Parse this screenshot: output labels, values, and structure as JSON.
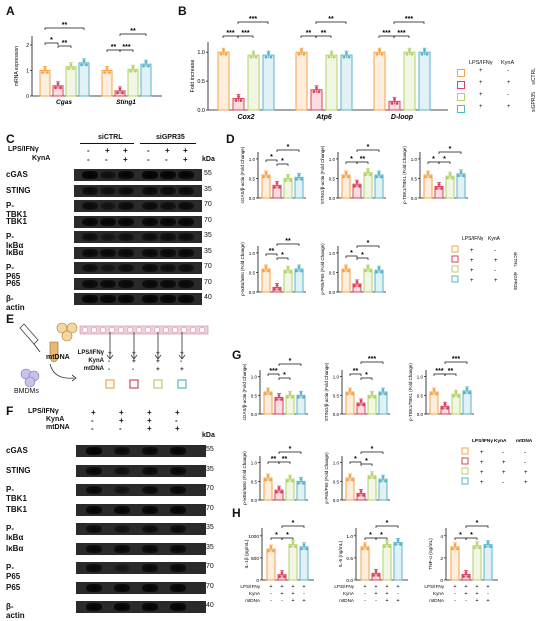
{
  "colors": {
    "orange": "#f5a34a",
    "red": "#d9425a",
    "green": "#b4d26a",
    "blue": "#5ab4c8"
  },
  "panels": {
    "A": {
      "letter": "A",
      "ylabel": "mRNA expression",
      "groups": [
        "Cgas",
        "Sting1"
      ],
      "values": [
        [
          1.0,
          0.4,
          1.15,
          1.3
        ],
        [
          1.0,
          0.2,
          1.05,
          1.25
        ]
      ],
      "yticks": [
        "0",
        "1",
        "2"
      ],
      "sig": [
        "*",
        "**",
        "**",
        "**",
        "***",
        "**"
      ]
    },
    "B": {
      "letter": "B",
      "ylabel": "Fold increase",
      "groups": [
        "Cox2",
        "Atp6",
        "D-loop"
      ],
      "values": [
        [
          1.0,
          0.2,
          0.95,
          0.95
        ],
        [
          1.0,
          0.35,
          0.95,
          0.95
        ],
        [
          1.0,
          0.15,
          1.0,
          1.0
        ]
      ],
      "yticks": [
        "0.0",
        "0.5",
        "1.0"
      ],
      "sig": [
        "***",
        "***",
        "***",
        "**",
        "**",
        "**",
        "***",
        "***",
        "***"
      ],
      "legend": {
        "header": [
          "LPS/IFNγ",
          "KynA"
        ],
        "rows": [
          [
            "+",
            "-"
          ],
          [
            "+",
            "+"
          ],
          [
            "+",
            "-"
          ],
          [
            "+",
            "+"
          ]
        ],
        "groups": [
          "siCTRL",
          "siGPR35"
        ]
      }
    },
    "C": {
      "letter": "C",
      "header_groups": [
        "siCTRL",
        "siGPR35"
      ],
      "treat_labels": [
        "LPS/IFNγ",
        "KynA"
      ],
      "lps": [
        "-",
        "+",
        "+",
        "-",
        "+",
        "+"
      ],
      "kyna": [
        "-",
        "-",
        "+",
        "-",
        "-",
        "+"
      ],
      "kda_header": "kDa",
      "rows": [
        {
          "name": "cGAS",
          "kda": "55"
        },
        {
          "name": "STING",
          "kda": "35"
        },
        {
          "name": "P-TBK1",
          "kda": "70"
        },
        {
          "name": "TBK1",
          "kda": "70"
        },
        {
          "name": "P-IκBα",
          "kda": "35"
        },
        {
          "name": "IκBα",
          "kda": "35"
        },
        {
          "name": "P-P65",
          "kda": "70"
        },
        {
          "name": "P65",
          "kda": "70"
        },
        {
          "name": "β-actin",
          "kda": "40"
        }
      ]
    },
    "D": {
      "letter": "D",
      "charts": [
        {
          "ylabel": "cGAS/β-actin (Fold Change)",
          "values": [
            1.0,
            0.55,
            0.85,
            0.9
          ]
        },
        {
          "ylabel": "STING/β-actin (Fold Change)",
          "values": [
            1.0,
            0.6,
            1.1,
            1.0
          ]
        },
        {
          "ylabel": "p-TBK1/TBK1 (Fold Change)",
          "values": [
            1.0,
            0.5,
            0.95,
            1.05
          ]
        },
        {
          "ylabel": "p-IκBα/IκBα (Fold Change)",
          "values": [
            1.0,
            0.2,
            0.95,
            1.0
          ]
        },
        {
          "ylabel": "p-P65/P65 (Fold Change)",
          "values": [
            1.0,
            0.35,
            1.0,
            0.95
          ]
        }
      ],
      "sig_row1": [
        "*",
        "*",
        "**",
        "*",
        "*",
        "*",
        "*"
      ],
      "sig_row2": [
        "**",
        "*",
        "**",
        "*",
        "**",
        "*"
      ],
      "legend": {
        "header": [
          "LPS/IFNγ",
          "KynA"
        ],
        "rows": [
          [
            "+",
            "-"
          ],
          [
            "+",
            "+"
          ],
          [
            "+",
            "-"
          ],
          [
            "+",
            "+"
          ]
        ],
        "groups": [
          "siCTRL",
          "siGPR35"
        ]
      }
    },
    "E": {
      "letter": "E",
      "mtdna": "mtDNA",
      "bmdms": "BMDMs",
      "rows": [
        {
          "label": "LPS/IFNγ",
          "vals": [
            "+",
            "+",
            "+",
            "+"
          ]
        },
        {
          "label": "KynA",
          "vals": [
            "-",
            "+",
            "+",
            "-"
          ]
        },
        {
          "label": "mtDNA",
          "vals": [
            "-",
            "-",
            "+",
            "+"
          ]
        }
      ]
    },
    "F": {
      "letter": "F",
      "treat_labels": [
        "LPS/IFNγ",
        "KynA",
        "mtDNA"
      ],
      "lps": [
        "+",
        "+",
        "+",
        "+"
      ],
      "kyna": [
        "-",
        "+",
        "+",
        "-"
      ],
      "mtdna": [
        "-",
        "-",
        "+",
        "+"
      ],
      "kda_header": "kDa",
      "rows": [
        {
          "name": "cGAS",
          "kda": "55"
        },
        {
          "name": "STING",
          "kda": "35"
        },
        {
          "name": "P-TBK1",
          "kda": "70"
        },
        {
          "name": "TBK1",
          "kda": "70"
        },
        {
          "name": "P-IκBα",
          "kda": "35"
        },
        {
          "name": "IκBα",
          "kda": "35"
        },
        {
          "name": "P-P65",
          "kda": "70"
        },
        {
          "name": "P65",
          "kda": "70"
        },
        {
          "name": "β-actin",
          "kda": "40"
        }
      ]
    },
    "G": {
      "letter": "G",
      "charts": [
        {
          "ylabel": "cGAS/β-actin (Fold Change)",
          "values": [
            1.0,
            0.75,
            0.85,
            0.85
          ]
        },
        {
          "ylabel": "STING/β-actin (Fold Change)",
          "values": [
            1.0,
            0.5,
            0.85,
            1.0
          ]
        },
        {
          "ylabel": "p-TBK1/TBK1 (Fold Change)",
          "values": [
            1.0,
            0.35,
            0.9,
            1.05
          ]
        },
        {
          "ylabel": "p-IκBα/IκBα (Fold Change)",
          "values": [
            1.0,
            0.45,
            0.95,
            0.85
          ]
        },
        {
          "ylabel": "p-P65/P65 (Fold Change)",
          "values": [
            1.0,
            0.3,
            1.1,
            0.95
          ]
        }
      ],
      "sig_row1": [
        "***",
        "*",
        "*",
        "**",
        "*",
        "***",
        "***",
        "**",
        "***"
      ],
      "sig_row2": [
        "**",
        "**",
        "*",
        "*",
        "*",
        "*"
      ],
      "legend": {
        "header": [
          "LPS/IFNγ",
          "KynA",
          "mtDNA"
        ],
        "rows": [
          [
            "+",
            "-",
            "-"
          ],
          [
            "+",
            "+",
            "-"
          ],
          [
            "+",
            "+",
            "+"
          ],
          [
            "+",
            "-",
            "+"
          ]
        ]
      }
    },
    "H": {
      "letter": "H",
      "charts": [
        {
          "ylabel": "IL-1β (pg/mL)",
          "values": [
            700,
            120,
            800,
            750
          ],
          "yticks": [
            "0",
            "500",
            "1000"
          ]
        },
        {
          "ylabel": "IL-6 (ng/mL)",
          "values": [
            0.75,
            0.15,
            0.8,
            0.85
          ],
          "yticks": [
            "0.0",
            "0.5",
            "1.0"
          ]
        },
        {
          "ylabel": "TNF-α (ng/mL)",
          "values": [
            3.0,
            0.5,
            3.1,
            3.2
          ],
          "yticks": [
            "0",
            "2",
            "4"
          ]
        }
      ],
      "sig": [
        "*",
        "*",
        "*",
        "*",
        "*",
        "*",
        "*",
        "*",
        "*"
      ],
      "xrows": [
        {
          "label": "LPS/IFNγ",
          "vals": [
            "+",
            "+",
            "+",
            "+"
          ]
        },
        {
          "label": "KynA",
          "vals": [
            "-",
            "+",
            "+",
            "-"
          ]
        },
        {
          "label": "mtDNA",
          "vals": [
            "-",
            "-",
            "+",
            "+"
          ]
        }
      ]
    }
  }
}
